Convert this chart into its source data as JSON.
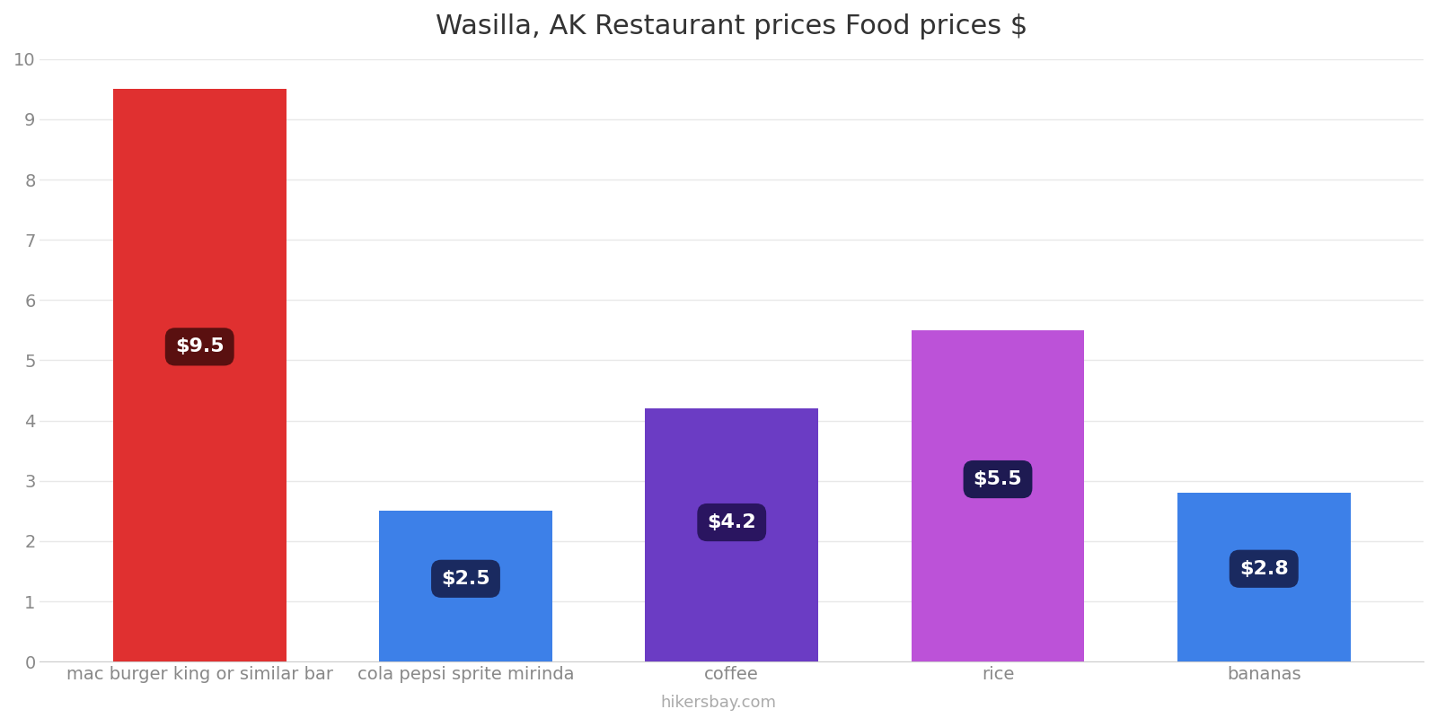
{
  "title": "Wasilla, AK Restaurant prices Food prices $",
  "categories": [
    "mac burger king or similar bar",
    "cola pepsi sprite mirinda",
    "coffee",
    "rice",
    "bananas"
  ],
  "values": [
    9.5,
    2.5,
    4.2,
    5.5,
    2.8
  ],
  "bar_colors": [
    "#e03030",
    "#3d80e8",
    "#6b3cc4",
    "#bc52d8",
    "#3d80e8"
  ],
  "label_texts": [
    "$9.5",
    "$2.5",
    "$4.2",
    "$5.5",
    "$2.8"
  ],
  "label_box_colors": [
    "#5a1010",
    "#1a2a60",
    "#2a1560",
    "#1e1a52",
    "#1a2a60"
  ],
  "ylim": [
    0,
    10
  ],
  "yticks": [
    0,
    1,
    2,
    3,
    4,
    5,
    6,
    7,
    8,
    9,
    10
  ],
  "title_fontsize": 22,
  "tick_fontsize": 14,
  "label_fontsize": 16,
  "watermark": "hikersbay.com",
  "background_color": "#ffffff",
  "grid_color": "#e8e8e8",
  "bar_width": 0.65
}
